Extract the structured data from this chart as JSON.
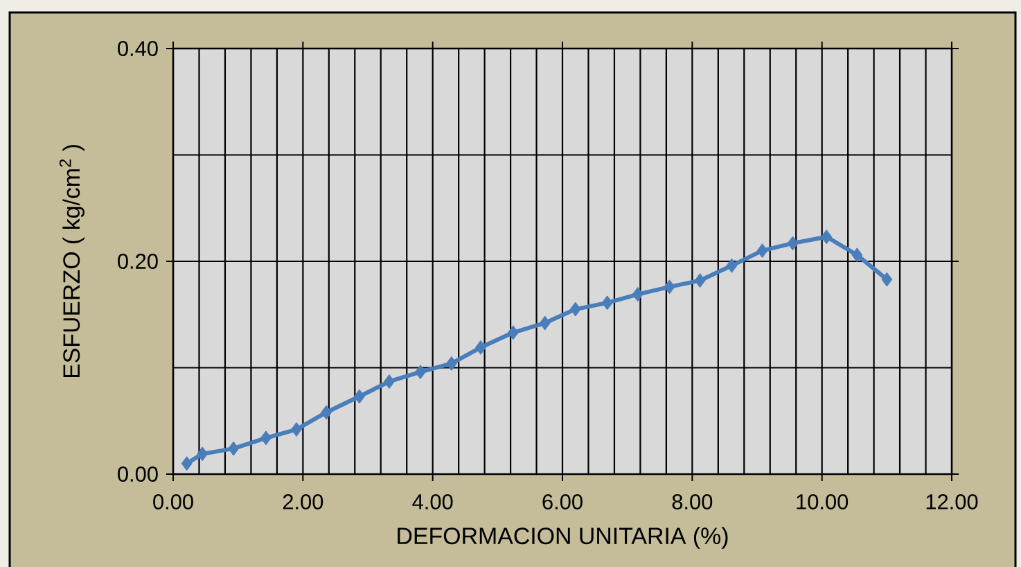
{
  "chart_data": {
    "type": "line",
    "xlabel": "DEFORMACION UNITARIA (%)",
    "ylabel": "ESFUERZO ( kg/cm$^{2}$ )",
    "x": [
      0.21,
      0.45,
      0.93,
      1.43,
      1.9,
      2.36,
      2.87,
      3.33,
      3.81,
      4.29,
      4.74,
      5.24,
      5.73,
      6.2,
      6.69,
      7.16,
      7.65,
      8.12,
      8.61,
      9.08,
      9.55,
      10.07,
      10.54,
      11.0
    ],
    "series": [
      {
        "color": "#4a7ebb",
        "values": [
          0.01,
          0.019,
          0.024,
          0.034,
          0.042,
          0.058,
          0.073,
          0.087,
          0.096,
          0.104,
          0.119,
          0.133,
          0.142,
          0.155,
          0.161,
          0.169,
          0.176,
          0.182,
          0.196,
          0.21,
          0.217,
          0.223,
          0.206,
          0.183
        ]
      }
    ],
    "xlim": [
      0,
      12
    ],
    "ylim": [
      0,
      0.4
    ],
    "xticks": [
      {
        "value": 0,
        "label": "0.00"
      },
      {
        "value": 0.4,
        "label": null
      },
      {
        "value": 0.8,
        "label": null
      },
      {
        "value": 1.2,
        "label": null
      },
      {
        "value": 1.6,
        "label": null
      },
      {
        "value": 2,
        "label": "2.00"
      },
      {
        "value": 2.4,
        "label": null
      },
      {
        "value": 2.8,
        "label": null
      },
      {
        "value": 3.2,
        "label": null
      },
      {
        "value": 3.6,
        "label": null
      },
      {
        "value": 4,
        "label": "4.00"
      },
      {
        "value": 4.4,
        "label": null
      },
      {
        "value": 4.8,
        "label": null
      },
      {
        "value": 5.2,
        "label": null
      },
      {
        "value": 5.6,
        "label": null
      },
      {
        "value": 6,
        "label": "6.00"
      },
      {
        "value": 6.4,
        "label": null
      },
      {
        "value": 6.8,
        "label": null
      },
      {
        "value": 7.2,
        "label": null
      },
      {
        "value": 7.6,
        "label": null
      },
      {
        "value": 8,
        "label": "8.00"
      },
      {
        "value": 8.4,
        "label": null
      },
      {
        "value": 8.8,
        "label": null
      },
      {
        "value": 9.2,
        "label": null
      },
      {
        "value": 9.6,
        "label": null
      },
      {
        "value": 10,
        "label": "10.00"
      },
      {
        "value": 10.4,
        "label": null
      },
      {
        "value": 10.8,
        "label": null
      },
      {
        "value": 11.2,
        "label": null
      },
      {
        "value": 11.6,
        "label": null
      },
      {
        "value": 12,
        "label": "12.00"
      }
    ],
    "yticks": [
      {
        "value": 0,
        "label": "0.00"
      },
      {
        "value": 0.1,
        "label": null
      },
      {
        "value": 0.2,
        "label": "0.20"
      },
      {
        "value": 0.3,
        "label": null
      },
      {
        "value": 0.4,
        "label": "0.40"
      }
    ],
    "grid": true,
    "marker": "diamond",
    "line_style": "solid"
  }
}
